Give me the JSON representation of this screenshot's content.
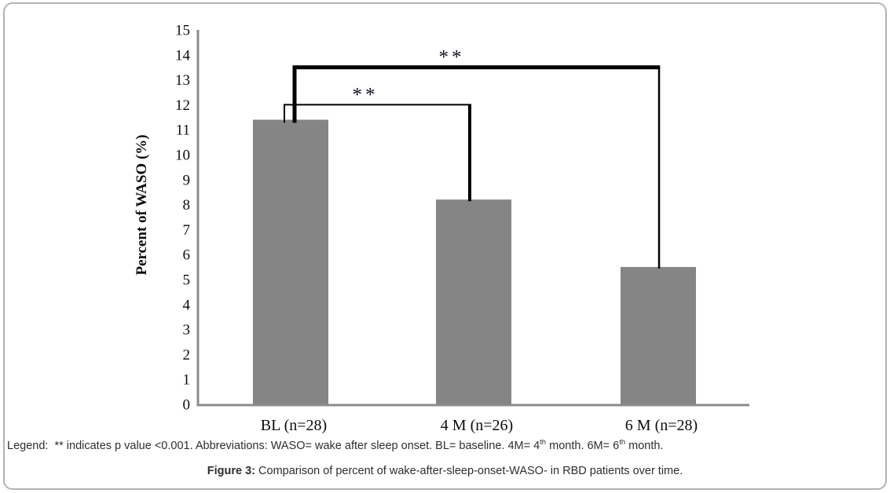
{
  "figure": {
    "frame_border_color": "#b3b3b3",
    "background": "#ffffff"
  },
  "chart_data": {
    "type": "bar",
    "title": "",
    "xlabel": "",
    "ylabel": "Percent of WASO (%)",
    "categories": [
      "BL (n=28)",
      "4 M (n=26)",
      "6 M (n=28)"
    ],
    "values": [
      11.4,
      8.2,
      5.5
    ],
    "ylim": [
      0,
      15
    ],
    "ytick_step": 1,
    "grid": false,
    "legend_position": "none",
    "bar_color": "#858585",
    "axis_color": "#8c8c8c",
    "text_color": "#0d0d0d",
    "significance_color": "#000000",
    "significance": [
      {
        "label": "**",
        "from": 0,
        "to": 1,
        "height": 12,
        "x1_offset": -8,
        "x2_offset": -5,
        "line_widths": {
          "top": 2,
          "left": 2,
          "right": 4
        },
        "label_dx": -15
      },
      {
        "label": "**",
        "from": 0,
        "to": 2,
        "height": 13.5,
        "x1_offset": 5,
        "x2_offset": 1,
        "line_widths": {
          "top": 5,
          "left": 5,
          "right": 2.5
        },
        "label_dx": -32
      }
    ]
  },
  "footer": {
    "legend_parts": [
      {
        "text": "Legend:  ** indicates p value <0.001. Abbreviations: WASO= wake after sleep onset. BL= baseline. 4M= 4"
      },
      {
        "text": "th",
        "sup": true
      },
      {
        "text": " month. 6M= 6"
      },
      {
        "text": "th",
        "sup": true
      },
      {
        "text": " month."
      }
    ],
    "caption_parts": [
      {
        "text": "Figure 3:",
        "bold": true
      },
      {
        "text": " Comparison of percent of wake-after-sleep-onset-WASO- in RBD patients over time."
      }
    ]
  }
}
